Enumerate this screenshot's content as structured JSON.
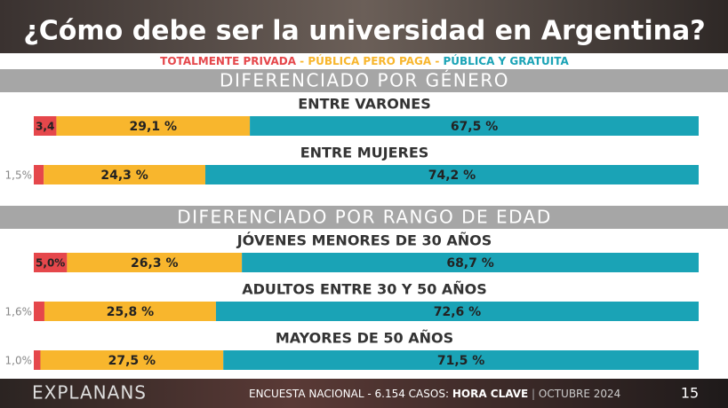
{
  "chart_data": {
    "type": "stacked-bar",
    "orientation": "horizontal",
    "title": "¿Cómo debe ser la universidad en Argentina?",
    "sections": [
      "DIFERENCIADO POR GÉNERO",
      "DIFERENCIADO POR RANGO DE EDAD"
    ],
    "categories": [
      "ENTRE VARONES",
      "ENTRE MUJERES",
      "JÓVENES MENORES DE 30 AÑOS",
      "ADULTOS ENTRE 30 Y 50 AÑOS",
      "MAYORES DE 50 AÑOS"
    ],
    "xlim": [
      0,
      100
    ],
    "series": [
      {
        "name": "TOTALMENTE PRIVADA",
        "color": "#e5474b",
        "values": [
          3.4,
          1.5,
          5.0,
          1.6,
          1.0
        ],
        "value_labels": [
          "3,4",
          "1,5%",
          "5,0%",
          "1,6%",
          "1,0%"
        ]
      },
      {
        "name": "PÚBLICA PERO PAGA",
        "color": "#f8b62d",
        "values": [
          29.1,
          24.3,
          26.3,
          25.8,
          27.5
        ],
        "value_labels": [
          "29,1 %",
          "24,3 %",
          "26,3 %",
          "25,8 %",
          "27,5 %"
        ]
      },
      {
        "name": "PÚBLICA Y GRATUITA",
        "color": "#1aa3b6",
        "values": [
          67.5,
          74.2,
          68.7,
          72.6,
          71.5
        ],
        "value_labels": [
          "67,5 %",
          "74,2 %",
          "68,7 %",
          "72,6 %",
          "71,5 %"
        ]
      }
    ]
  },
  "footer": {
    "brand": "EXPLANANS",
    "survey": "ENCUESTA NACIONAL - 6.154 CASOS:",
    "source": "HORA CLAVE",
    "date": "OCTUBRE 2024",
    "page": "15"
  }
}
